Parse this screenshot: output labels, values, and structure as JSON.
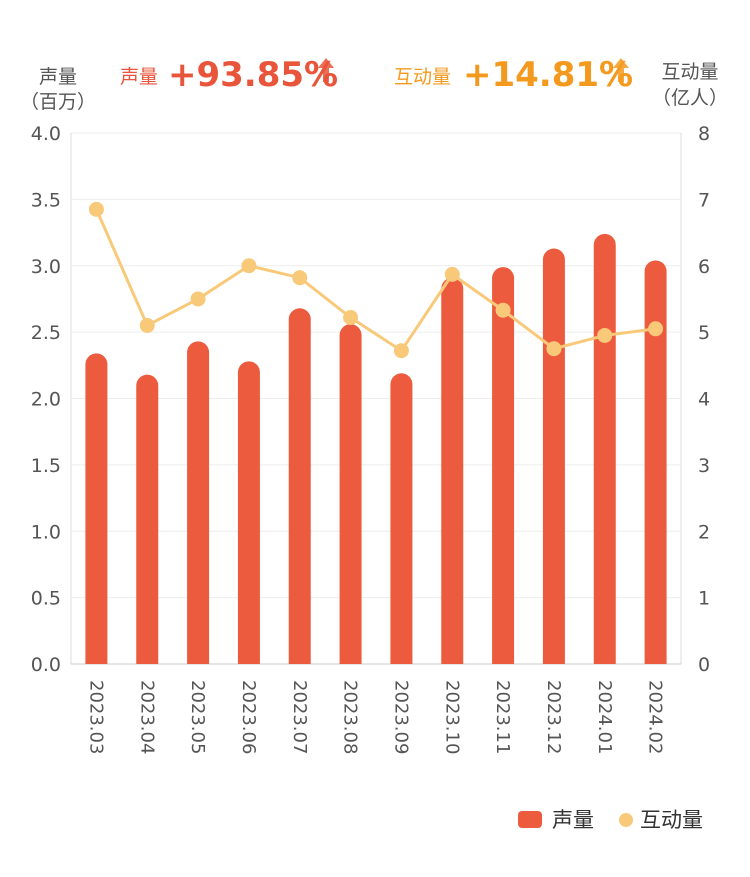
{
  "header": {
    "left_axis_title_line1": "声量",
    "left_axis_title_line2": "（百万）",
    "right_axis_title_line1": "互动量",
    "right_axis_title_line2": "（亿人）",
    "stat1_label": "声量",
    "stat1_value": "+93.85%",
    "stat2_label": "互动量",
    "stat2_value": "+14.81%"
  },
  "colors": {
    "bar": "#EC5B3E",
    "line": "#F9C97A",
    "stat1": "#E8553A",
    "stat2": "#F39A1E"
  },
  "chart_data": {
    "type": "bar",
    "categories": [
      "2023.03",
      "2023.04",
      "2023.05",
      "2023.06",
      "2023.07",
      "2023.08",
      "2023.09",
      "2023.10",
      "2023.11",
      "2023.12",
      "2024.01",
      "2024.02"
    ],
    "series": [
      {
        "name": "声量",
        "type": "bar",
        "axis": "left",
        "values": [
          2.34,
          2.18,
          2.43,
          2.28,
          2.68,
          2.56,
          2.19,
          2.91,
          2.99,
          3.13,
          3.24,
          3.04
        ]
      },
      {
        "name": "互动量",
        "type": "line",
        "axis": "right",
        "values": [
          6.85,
          5.1,
          5.5,
          6.0,
          5.82,
          5.22,
          4.72,
          5.87,
          5.33,
          4.75,
          4.95,
          5.05
        ]
      }
    ],
    "left_axis": {
      "ylim": [
        0,
        4.0
      ],
      "ticks": [
        "0.0",
        "0.5",
        "1.0",
        "1.5",
        "2.0",
        "2.5",
        "3.0",
        "3.5",
        "4.0"
      ]
    },
    "right_axis": {
      "ylim": [
        0,
        8
      ],
      "ticks": [
        "0",
        "1",
        "2",
        "3",
        "4",
        "5",
        "6",
        "7",
        "8"
      ]
    },
    "grid": true,
    "legend": {
      "position": "bottom-right",
      "items": [
        "声量",
        "互动量"
      ]
    }
  }
}
